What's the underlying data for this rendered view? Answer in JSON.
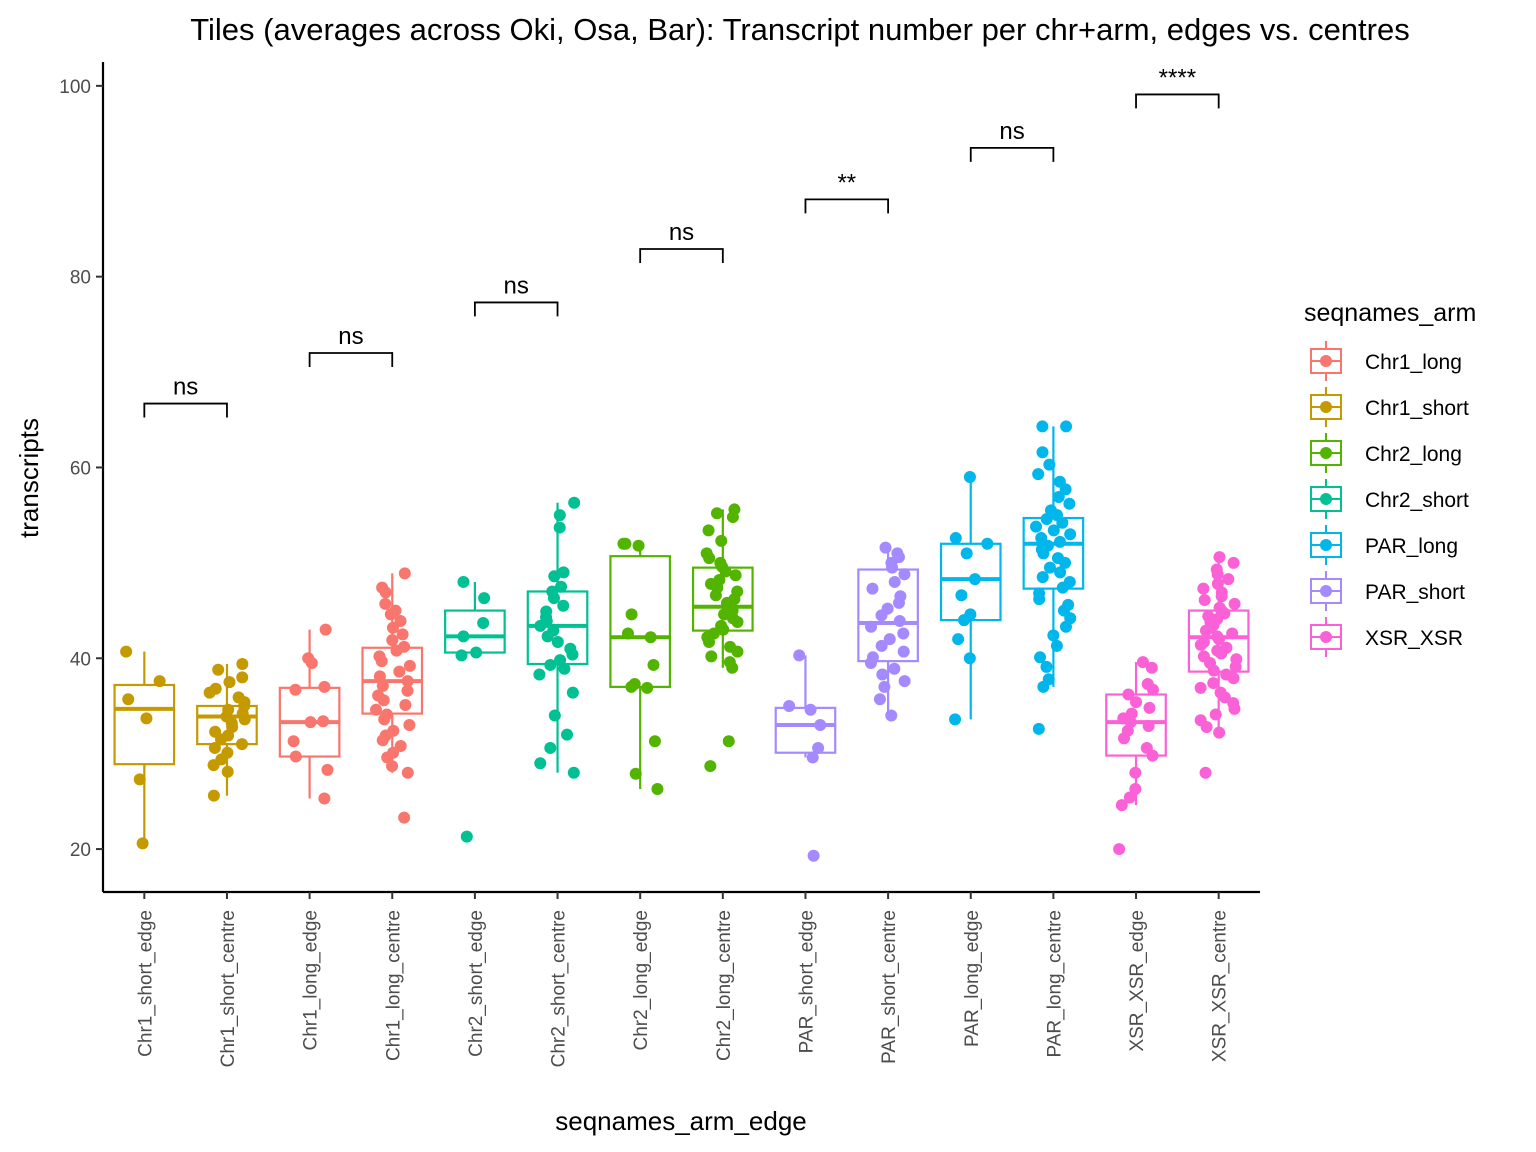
{
  "chart_data": {
    "type": "boxplot",
    "title": "Tiles (averages across Oki, Osa, Bar): Transcript number per chr+arm, edges vs. centres",
    "xlabel": "seqnames_arm_edge",
    "ylabel": "transcripts",
    "ylim": [
      15.5,
      102.5
    ],
    "yticks": [
      20,
      40,
      60,
      80,
      100
    ],
    "grid": false,
    "legend": {
      "title": "seqnames_arm",
      "placement": "right",
      "entries": [
        {
          "label": "Chr1_long",
          "color": "#F8766D"
        },
        {
          "label": "Chr1_short",
          "color": "#C49A00"
        },
        {
          "label": "Chr2_long",
          "color": "#53B400"
        },
        {
          "label": "Chr2_short",
          "color": "#00C094"
        },
        {
          "label": "PAR_long",
          "color": "#00B6EB"
        },
        {
          "label": "PAR_short",
          "color": "#A58AFF"
        },
        {
          "label": "XSR_XSR",
          "color": "#FB61D7"
        }
      ]
    },
    "categories": [
      {
        "label": "Chr1_short_edge",
        "group": "Chr1_short",
        "q1": 28.9,
        "median": 34.7,
        "q3": 37.2,
        "whisker_low": 20.6,
        "whisker_high": 40.7,
        "points": [
          40.7,
          37.6,
          35.7,
          33.7,
          27.3,
          20.6
        ]
      },
      {
        "label": "Chr1_short_centre",
        "group": "Chr1_short",
        "q1": 31.0,
        "median": 33.9,
        "q3": 35.0,
        "whisker_low": 25.6,
        "whisker_high": 39.4,
        "points": [
          39.4,
          38.8,
          38.0,
          37.5,
          36.8,
          36.4,
          35.9,
          35.4,
          35.0,
          34.6,
          34.2,
          33.9,
          33.6,
          33.2,
          32.8,
          32.3,
          31.9,
          31.5,
          31.0,
          30.6,
          30.1,
          29.4,
          28.8,
          28.1,
          25.6
        ]
      },
      {
        "label": "Chr1_long_edge",
        "group": "Chr1_long",
        "q1": 29.7,
        "median": 33.3,
        "q3": 36.9,
        "whisker_low": 25.3,
        "whisker_high": 43.0,
        "points": [
          43.0,
          40.0,
          39.5,
          37.0,
          36.7,
          33.4,
          33.3,
          31.3,
          29.7,
          28.3,
          25.3
        ]
      },
      {
        "label": "Chr1_long_centre",
        "group": "Chr1_long",
        "q1": 34.2,
        "median": 37.6,
        "q3": 41.1,
        "whisker_low": 28.0,
        "whisker_high": 48.9,
        "points": [
          48.9,
          47.4,
          46.9,
          45.7,
          45.0,
          44.6,
          43.9,
          43.2,
          42.5,
          41.9,
          41.2,
          40.8,
          40.2,
          39.7,
          39.2,
          38.6,
          38.1,
          37.6,
          37.1,
          36.6,
          36.1,
          35.6,
          35.1,
          34.6,
          34.1,
          33.6,
          33.0,
          32.4,
          31.9,
          31.4,
          30.8,
          30.1,
          29.6,
          28.7,
          28.0,
          23.3
        ]
      },
      {
        "label": "Chr2_short_edge",
        "group": "Chr2_short",
        "q1": 40.6,
        "median": 42.3,
        "q3": 45.0,
        "whisker_low": 40.3,
        "whisker_high": 48.0,
        "points": [
          48.0,
          46.3,
          43.7,
          42.3,
          40.6,
          40.3,
          21.3
        ]
      },
      {
        "label": "Chr2_short_centre",
        "group": "Chr2_short",
        "q1": 39.4,
        "median": 43.4,
        "q3": 47.0,
        "whisker_low": 28.0,
        "whisker_high": 56.3,
        "points": [
          56.3,
          55.0,
          53.7,
          49.0,
          48.6,
          47.5,
          47.0,
          46.3,
          45.5,
          44.9,
          44.3,
          43.9,
          43.4,
          42.9,
          42.3,
          41.7,
          41.0,
          40.4,
          39.8,
          39.3,
          38.9,
          38.3,
          36.4,
          34.0,
          32.0,
          30.6,
          29.0,
          28.0
        ]
      },
      {
        "label": "Chr2_long_edge",
        "group": "Chr2_long",
        "q1": 37.0,
        "median": 42.2,
        "q3": 50.7,
        "whisker_low": 26.3,
        "whisker_high": 52.0,
        "points": [
          52.0,
          52.0,
          51.8,
          44.6,
          42.6,
          42.2,
          39.3,
          37.3,
          37.0,
          36.9,
          31.3,
          27.9,
          26.3
        ]
      },
      {
        "label": "Chr2_long_centre",
        "group": "Chr2_long",
        "q1": 42.9,
        "median": 45.4,
        "q3": 49.5,
        "whisker_low": 39.0,
        "whisker_high": 55.6,
        "points": [
          55.6,
          55.2,
          54.8,
          53.4,
          52.3,
          51.0,
          50.5,
          50.0,
          49.6,
          49.1,
          48.7,
          48.2,
          47.8,
          47.4,
          47.0,
          46.6,
          46.2,
          45.8,
          45.4,
          45.0,
          44.6,
          44.2,
          43.8,
          43.4,
          43.0,
          42.6,
          42.2,
          41.7,
          41.2,
          40.7,
          40.2,
          39.6,
          39.0,
          31.3,
          28.7
        ]
      },
      {
        "label": "PAR_short_edge",
        "group": "PAR_short",
        "q1": 30.1,
        "median": 33.0,
        "q3": 34.8,
        "whisker_low": 29.6,
        "whisker_high": 40.3,
        "points": [
          40.3,
          35.0,
          34.6,
          33.0,
          30.6,
          29.6,
          19.3
        ]
      },
      {
        "label": "PAR_short_centre",
        "group": "PAR_short",
        "q1": 39.7,
        "median": 43.7,
        "q3": 49.3,
        "whisker_low": 34.0,
        "whisker_high": 51.6,
        "points": [
          51.6,
          51.0,
          50.6,
          50.0,
          49.5,
          48.8,
          48.0,
          47.3,
          46.5,
          45.8,
          45.2,
          44.5,
          43.9,
          43.3,
          42.6,
          42.0,
          41.3,
          40.7,
          40.1,
          39.5,
          38.9,
          38.3,
          37.6,
          37.0,
          35.7,
          34.0
        ]
      },
      {
        "label": "PAR_long_edge",
        "group": "PAR_long",
        "q1": 44.0,
        "median": 48.3,
        "q3": 52.0,
        "whisker_low": 33.6,
        "whisker_high": 59.0,
        "points": [
          59.0,
          52.6,
          52.0,
          51.0,
          48.3,
          46.6,
          44.6,
          44.0,
          42.0,
          40.0,
          33.6
        ]
      },
      {
        "label": "PAR_long_centre",
        "group": "PAR_long",
        "q1": 47.3,
        "median": 52.0,
        "q3": 54.7,
        "whisker_low": 37.0,
        "whisker_high": 64.3,
        "points": [
          64.3,
          64.3,
          61.6,
          60.3,
          59.3,
          58.5,
          57.7,
          56.9,
          56.2,
          55.5,
          55.0,
          54.6,
          54.2,
          53.8,
          53.4,
          53.0,
          52.6,
          52.2,
          51.8,
          51.4,
          51.0,
          50.5,
          50.0,
          49.5,
          49.0,
          48.5,
          48.0,
          47.4,
          46.8,
          46.2,
          45.6,
          45.0,
          44.2,
          43.3,
          42.4,
          41.3,
          40.1,
          39.1,
          37.8,
          37.0,
          32.6
        ]
      },
      {
        "label": "XSR_XSR_edge",
        "group": "XSR_XSR",
        "q1": 29.8,
        "median": 33.3,
        "q3": 36.2,
        "whisker_low": 24.6,
        "whisker_high": 39.6,
        "points": [
          39.6,
          39.0,
          37.3,
          36.7,
          36.2,
          35.4,
          34.8,
          34.2,
          33.7,
          33.3,
          32.9,
          32.4,
          31.6,
          30.6,
          29.8,
          28.0,
          26.3,
          25.4,
          24.6,
          20.0
        ]
      },
      {
        "label": "XSR_XSR_centre",
        "group": "XSR_XSR",
        "q1": 38.6,
        "median": 42.2,
        "q3": 45.0,
        "whisker_low": 32.2,
        "whisker_high": 50.6,
        "points": [
          50.6,
          50.0,
          49.3,
          48.8,
          48.3,
          47.8,
          47.3,
          46.9,
          46.5,
          46.1,
          45.7,
          45.3,
          45.0,
          44.7,
          44.4,
          44.1,
          43.8,
          43.5,
          43.2,
          42.9,
          42.6,
          42.3,
          42.0,
          41.7,
          41.4,
          41.1,
          40.8,
          40.5,
          40.2,
          39.9,
          39.5,
          39.1,
          38.7,
          38.3,
          37.9,
          37.4,
          36.9,
          36.4,
          35.9,
          35.3,
          34.7,
          34.1,
          33.5,
          32.8,
          32.2,
          28.0
        ]
      }
    ],
    "comparisons": [
      {
        "from": 0,
        "to": 1,
        "y": 66.7,
        "label": "ns"
      },
      {
        "from": 2,
        "to": 3,
        "y": 72.0,
        "label": "ns"
      },
      {
        "from": 4,
        "to": 5,
        "y": 77.3,
        "label": "ns"
      },
      {
        "from": 6,
        "to": 7,
        "y": 82.9,
        "label": "ns"
      },
      {
        "from": 8,
        "to": 9,
        "y": 88.1,
        "label": "**"
      },
      {
        "from": 10,
        "to": 11,
        "y": 93.5,
        "label": "ns"
      },
      {
        "from": 12,
        "to": 13,
        "y": 99.1,
        "label": "****"
      }
    ]
  }
}
